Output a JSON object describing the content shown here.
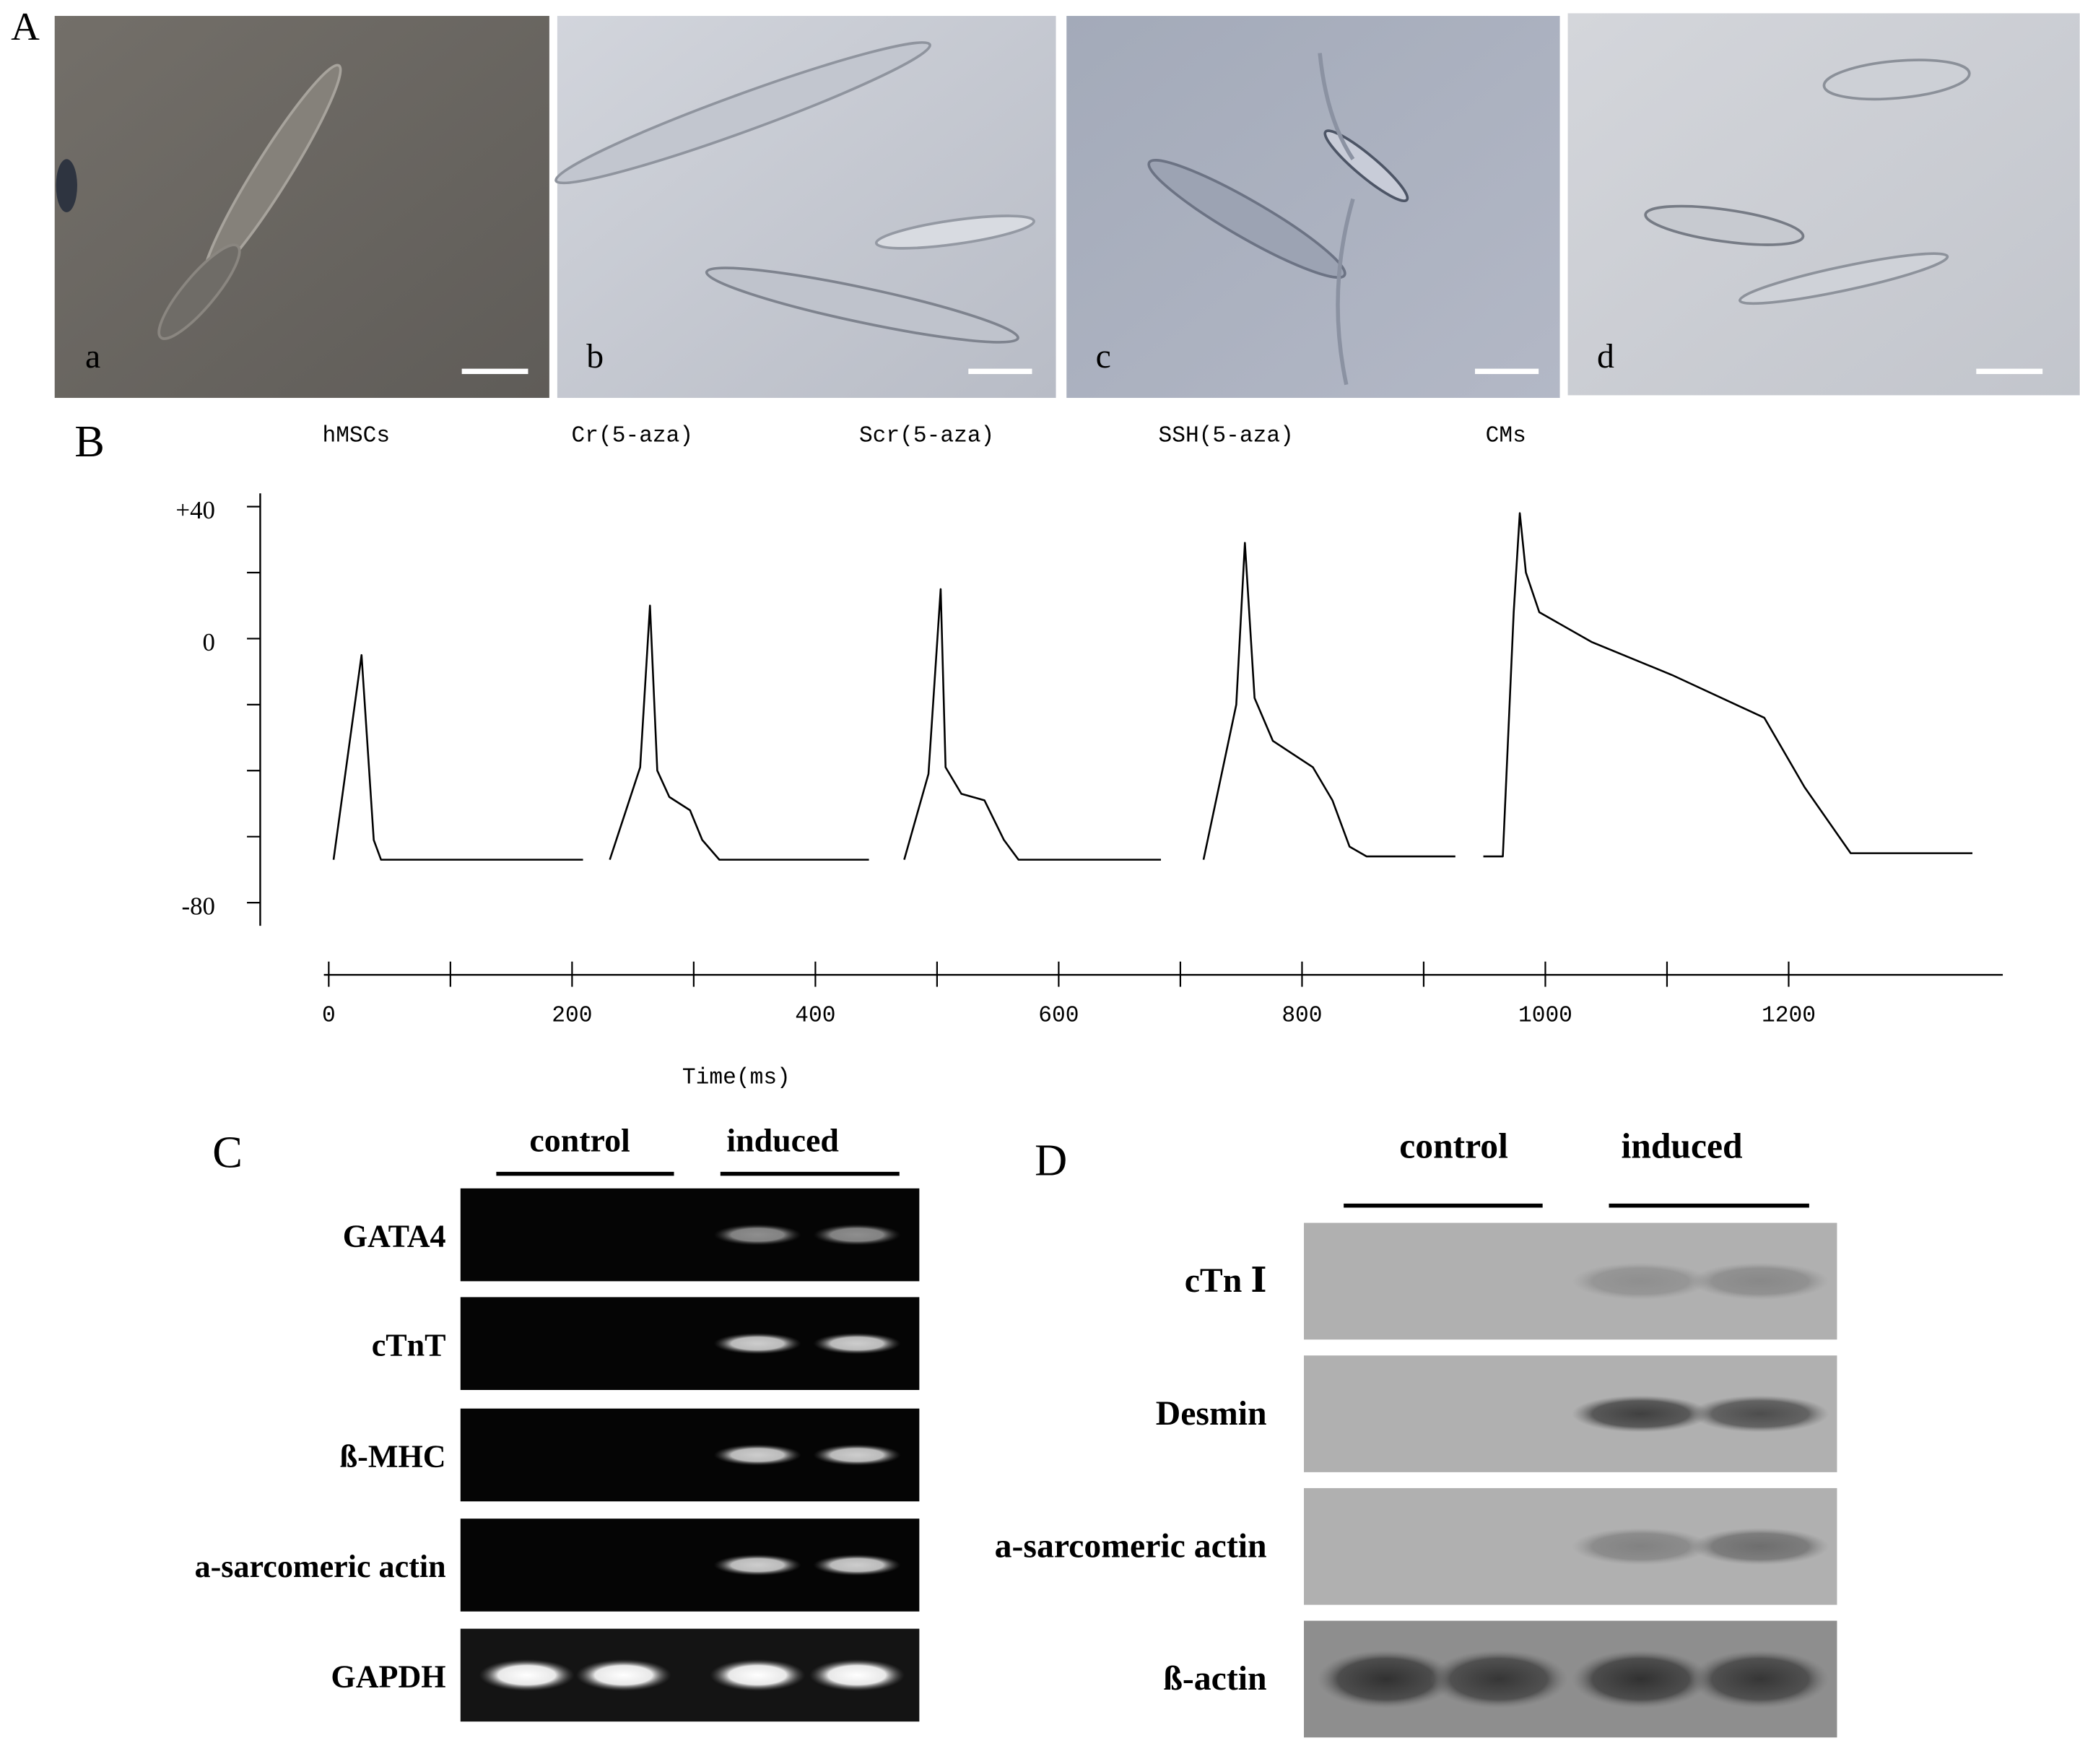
{
  "panels": {
    "A": {
      "letter": "A",
      "images": [
        {
          "label": "a"
        },
        {
          "label": "b"
        },
        {
          "label": "c"
        },
        {
          "label": "d"
        }
      ]
    },
    "B": {
      "letter": "B"
    },
    "C": {
      "letter": "C",
      "groups": [
        "control",
        "induced"
      ],
      "rows": [
        "GATA4",
        "cTnT",
        "ß-MHC",
        "a-sarcomeric actin",
        "GAPDH"
      ]
    },
    "D": {
      "letter": "D",
      "groups": [
        "control",
        "induced"
      ],
      "rows": [
        "cTn Ⅰ",
        "Desmin",
        "a-sarcomeric actin",
        "ß-actin"
      ]
    }
  },
  "chart_data": {
    "type": "line",
    "x_label": "Time(ms)",
    "xlim": [
      -4,
      1376
    ],
    "xticks": [
      0,
      200,
      400,
      600,
      800,
      1000,
      1200
    ],
    "ylim": [
      -87,
      44
    ],
    "yticks": [
      {
        "value": 40,
        "label": "+40"
      },
      0,
      -80
    ],
    "series": [
      {
        "name": "hMSCs",
        "color": "#000000",
        "x": [
          4,
          27,
          37,
          43,
          209
        ],
        "values": [
          -67,
          -5,
          -61,
          -67,
          -67
        ]
      },
      {
        "name": "Cr(5-aza)",
        "color": "#000000",
        "x": [
          231,
          256,
          264,
          270,
          280,
          297,
          307,
          321,
          444
        ],
        "values": [
          -67,
          -39,
          10,
          -40,
          -48,
          -52,
          -61,
          -67,
          -67
        ]
      },
      {
        "name": "Scr(5-aza)",
        "color": "#000000",
        "x": [
          473,
          493,
          503,
          507,
          520,
          539,
          555,
          567,
          684
        ],
        "values": [
          -67,
          -41,
          15,
          -39,
          -47,
          -49,
          -61,
          -67,
          -67
        ]
      },
      {
        "name": "SSH(5-aza)",
        "color": "#000000",
        "x": [
          719,
          746,
          753,
          761,
          776,
          809,
          825,
          839,
          853,
          926
        ],
        "values": [
          -67,
          -20,
          29,
          -18,
          -31,
          -39,
          -49,
          -63,
          -66,
          -66
        ]
      },
      {
        "name": "CMs",
        "color": "#000000",
        "x": [
          949,
          965,
          974,
          979,
          984,
          995,
          1038,
          1104,
          1180,
          1213,
          1251,
          1351
        ],
        "values": [
          -66,
          -66,
          8,
          38,
          20,
          8,
          -1,
          -11,
          -24,
          -45,
          -65,
          -65
        ]
      }
    ]
  }
}
